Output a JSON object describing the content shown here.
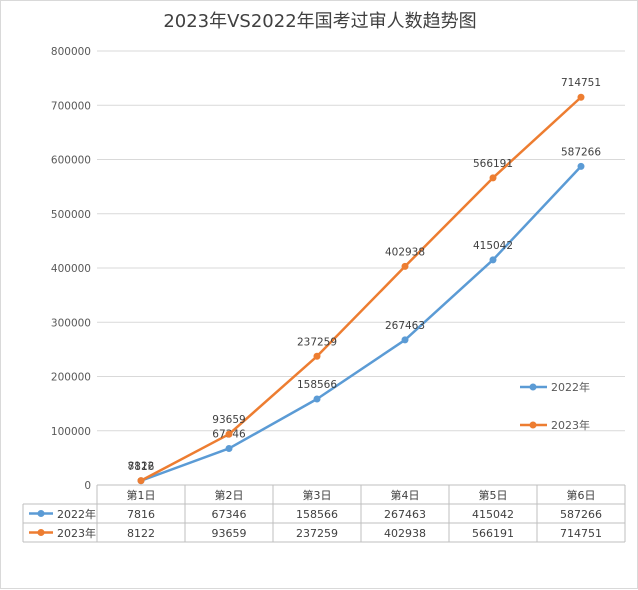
{
  "chart_data": {
    "type": "line",
    "title": "2023年VS2022年国考过审人数趋势图",
    "categories": [
      "第1日",
      "第2日",
      "第3日",
      "第4日",
      "第5日",
      "第6日"
    ],
    "series": [
      {
        "name": "2022年",
        "color": "#5b9bd5",
        "values": [
          7816,
          67346,
          158566,
          267463,
          415042,
          587266
        ]
      },
      {
        "name": "2023年",
        "color": "#ed7d31",
        "values": [
          8122,
          93659,
          237259,
          402938,
          566191,
          714751
        ]
      }
    ],
    "ylim": [
      0,
      800000
    ],
    "yticks": [
      "0",
      "100000",
      "200000",
      "300000",
      "400000",
      "500000",
      "600000",
      "700000",
      "800000"
    ],
    "grid": true,
    "legend_position": "right",
    "data_table": true
  }
}
